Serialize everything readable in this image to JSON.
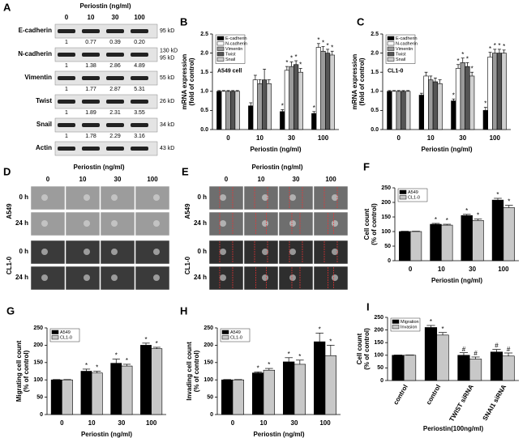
{
  "blot": {
    "panel": "A",
    "header": "Periostin (ng/ml)",
    "columns": [
      "0",
      "10",
      "30",
      "100"
    ],
    "rows": [
      {
        "name": "E-cadherin",
        "sizes": [
          "95 kD"
        ],
        "quant": [
          "1",
          "0.77",
          "0.39",
          "0.20"
        ]
      },
      {
        "name": "N-cadherin",
        "sizes": [
          "130 kD",
          "95 kD"
        ],
        "quant": [
          "1",
          "1.38",
          "2.86",
          "4.89"
        ]
      },
      {
        "name": "Vimentin",
        "sizes": [
          "55 kD"
        ],
        "quant": [
          "1",
          "1.77",
          "2.87",
          "5.31"
        ]
      },
      {
        "name": "Twist",
        "sizes": [
          "26 kD"
        ],
        "quant": [
          "1",
          "1.89",
          "2.31",
          "3.55"
        ]
      },
      {
        "name": "Snail",
        "sizes": [
          "34 kD"
        ],
        "quant": [
          "1",
          "1.78",
          "2.29",
          "3.16"
        ]
      },
      {
        "name": "Actin",
        "sizes": [
          "43 kD"
        ],
        "quant": null
      }
    ]
  },
  "images": [
    {
      "panel": "D",
      "header": "Periostin (ng/ml)",
      "columns": [
        "0",
        "10",
        "30",
        "100"
      ],
      "groups": [
        {
          "name": "A549",
          "rows": [
            "0 h",
            "24 h"
          ]
        },
        {
          "name": "CL1-0",
          "rows": [
            "0 h",
            "24 h"
          ]
        }
      ]
    },
    {
      "panel": "E",
      "header": "Periostin (ng/ml)",
      "columns": [
        "0",
        "10",
        "30",
        "100"
      ],
      "groups": [
        {
          "name": "A549",
          "rows": [
            "0 h",
            "24 h"
          ]
        },
        {
          "name": "CL1-0",
          "rows": [
            "0 h",
            "24 h"
          ]
        }
      ]
    }
  ],
  "chart_data": [
    {
      "type": "bar",
      "panel": "B",
      "annotation": "A549 cell",
      "xlabel": "Periostin (ng/ml)",
      "ylabel": [
        "mRNA expression",
        "(fold of control)"
      ],
      "categories": [
        "0",
        "10",
        "30",
        "100"
      ],
      "ylim": [
        0,
        2.5
      ],
      "yticks": [
        {
          "value": 0,
          "label": "0.0"
        },
        {
          "value": 0.5,
          "label": "0.5"
        },
        {
          "value": 1,
          "label": "1.0"
        },
        {
          "value": 1.5,
          "label": "1.5"
        },
        {
          "value": 2,
          "label": "2.0"
        },
        {
          "value": 2.5,
          "label": "2.5"
        }
      ],
      "series": [
        {
          "name": "E-cadherin",
          "color": "#000000",
          "values": [
            1,
            0.62,
            0.47,
            0.42
          ],
          "errors": [
            0.02,
            0.08,
            0.05,
            0.05
          ],
          "stars": [
            null,
            null,
            "*",
            "*"
          ]
        },
        {
          "name": "N-cadherin",
          "color": "#ffffff",
          "values": [
            1,
            1.3,
            1.55,
            2.15
          ],
          "errors": [
            0.02,
            0.12,
            0.1,
            0.1
          ],
          "stars": [
            null,
            null,
            "*",
            "*"
          ]
        },
        {
          "name": "Vimentin",
          "color": "#9a9a9a",
          "values": [
            1,
            1.2,
            1.65,
            2.05
          ],
          "errors": [
            0.02,
            0.1,
            0.12,
            0.12
          ],
          "stars": [
            null,
            null,
            "*",
            "*"
          ]
        },
        {
          "name": "Twist",
          "color": "#555555",
          "values": [
            1,
            1.3,
            1.7,
            2.0
          ],
          "errors": [
            0.02,
            0.28,
            0.1,
            0.1
          ],
          "stars": [
            null,
            null,
            "*",
            "*"
          ]
        },
        {
          "name": "Snail",
          "color": "#d0d0d0",
          "values": [
            1,
            1.2,
            1.5,
            1.95
          ],
          "errors": [
            0.02,
            0.1,
            0.1,
            0.1
          ],
          "stars": [
            null,
            null,
            "*",
            "*"
          ]
        }
      ]
    },
    {
      "type": "bar",
      "panel": "C",
      "annotation": "CL1-0",
      "xlabel": "Periostin (ng/ml)",
      "ylabel": [
        "mRNA expression",
        "(fold of control)"
      ],
      "categories": [
        "0",
        "10",
        "30",
        "100"
      ],
      "ylim": [
        0,
        2.5
      ],
      "yticks": [
        {
          "value": 0,
          "label": "0.0"
        },
        {
          "value": 0.5,
          "label": "0.5"
        },
        {
          "value": 1,
          "label": "1.0"
        },
        {
          "value": 1.5,
          "label": "1.5"
        },
        {
          "value": 2,
          "label": "2.0"
        },
        {
          "value": 2.5,
          "label": "2.5"
        }
      ],
      "series": [
        {
          "name": "E-cadherin",
          "color": "#000000",
          "values": [
            1,
            0.9,
            0.75,
            0.5
          ],
          "errors": [
            0.02,
            0.05,
            0.05,
            0.08
          ],
          "stars": [
            null,
            null,
            "*",
            "*"
          ]
        },
        {
          "name": "N-cadherin",
          "color": "#ffffff",
          "values": [
            1,
            1.4,
            1.6,
            1.9
          ],
          "errors": [
            0.02,
            0.1,
            0.1,
            0.12
          ],
          "stars": [
            null,
            null,
            "*",
            "*"
          ]
        },
        {
          "name": "Vimentin",
          "color": "#9a9a9a",
          "values": [
            1,
            1.3,
            1.75,
            2.0
          ],
          "errors": [
            0.02,
            0.1,
            0.12,
            0.1
          ],
          "stars": [
            null,
            null,
            "*",
            "*"
          ]
        },
        {
          "name": "Twist",
          "color": "#555555",
          "values": [
            1,
            1.25,
            1.65,
            2.0
          ],
          "errors": [
            0.02,
            0.1,
            0.1,
            0.1
          ],
          "stars": [
            null,
            null,
            "*",
            "*"
          ]
        },
        {
          "name": "Snail",
          "color": "#d0d0d0",
          "values": [
            1,
            1.2,
            1.4,
            2.0
          ],
          "errors": [
            0.02,
            0.1,
            0.1,
            0.08
          ],
          "stars": [
            null,
            null,
            "*",
            "*"
          ]
        }
      ]
    },
    {
      "type": "bar",
      "panel": "F",
      "xlabel": "Periostin (ng/ml)",
      "ylabel": [
        "Cell count",
        "(% of control)"
      ],
      "categories": [
        "0",
        "10",
        "30",
        "100"
      ],
      "ylim": [
        0,
        250
      ],
      "yticks": [
        0,
        50,
        100,
        150,
        200,
        250
      ],
      "series": [
        {
          "name": "A549",
          "color": "#000000",
          "values": [
            100,
            125,
            155,
            208
          ],
          "errors": [
            1,
            3,
            4,
            6
          ],
          "stars": [
            null,
            "*",
            "*",
            "*"
          ]
        },
        {
          "name": "CL1-0",
          "color": "#c8c8c8",
          "values": [
            100,
            122,
            138,
            182
          ],
          "errors": [
            1,
            3,
            5,
            8
          ],
          "stars": [
            null,
            "*",
            "*",
            "*"
          ]
        }
      ]
    },
    {
      "type": "bar",
      "panel": "G",
      "xlabel": "Periostin (ng/ml)",
      "ylabel": [
        "Migrating cell count",
        "(% of control)"
      ],
      "categories": [
        "0",
        "10",
        "30",
        "100"
      ],
      "ylim": [
        0,
        250
      ],
      "yticks": [
        0,
        50,
        100,
        150,
        200,
        250
      ],
      "series": [
        {
          "name": "A549",
          "color": "#000000",
          "values": [
            100,
            125,
            148,
            200
          ],
          "errors": [
            1,
            6,
            12,
            6
          ],
          "stars": [
            null,
            "*",
            "*",
            "*"
          ]
        },
        {
          "name": "CL1-0",
          "color": "#c8c8c8",
          "values": [
            100,
            120,
            140,
            190
          ],
          "errors": [
            1,
            5,
            5,
            4
          ],
          "stars": [
            null,
            "*",
            "*",
            "*"
          ]
        }
      ]
    },
    {
      "type": "bar",
      "panel": "H",
      "xlabel": "Periostin  (ng/ml)",
      "ylabel": [
        "Invading cell count",
        "(% of control)"
      ],
      "categories": [
        "0",
        "10",
        "30",
        "100"
      ],
      "ylim": [
        0,
        250
      ],
      "yticks": [
        0,
        50,
        100,
        150,
        200,
        250
      ],
      "series": [
        {
          "name": "A549",
          "color": "#000000",
          "values": [
            100,
            120,
            152,
            210
          ],
          "errors": [
            1,
            3,
            12,
            25
          ],
          "stars": [
            null,
            "*",
            "*",
            "*"
          ]
        },
        {
          "name": "CL1-0",
          "color": "#c8c8c8",
          "values": [
            100,
            128,
            145,
            170
          ],
          "errors": [
            1,
            5,
            12,
            30
          ],
          "stars": [
            null,
            "*",
            "*",
            "*"
          ]
        }
      ]
    },
    {
      "type": "bar",
      "panel": "I",
      "xlabel": "Periostin(100ng/ml)",
      "ylabel": [
        "Cell count",
        "(% of control)"
      ],
      "categories": [
        "control",
        "control",
        "TWIST siRNA",
        "SNAI1 siRNA"
      ],
      "ylim": [
        0,
        250
      ],
      "yticks": [
        0,
        50,
        100,
        150,
        200,
        250
      ],
      "series": [
        {
          "name": "Migration",
          "color": "#000000",
          "values": [
            100,
            210,
            100,
            113
          ],
          "errors": [
            1,
            8,
            10,
            10
          ],
          "stars": [
            null,
            "*",
            "#",
            "#"
          ]
        },
        {
          "name": "Invasion",
          "color": "#c8c8c8",
          "values": [
            100,
            180,
            85,
            97
          ],
          "errors": [
            1,
            10,
            8,
            12
          ],
          "stars": [
            null,
            "*",
            "#",
            "#"
          ]
        }
      ]
    }
  ]
}
